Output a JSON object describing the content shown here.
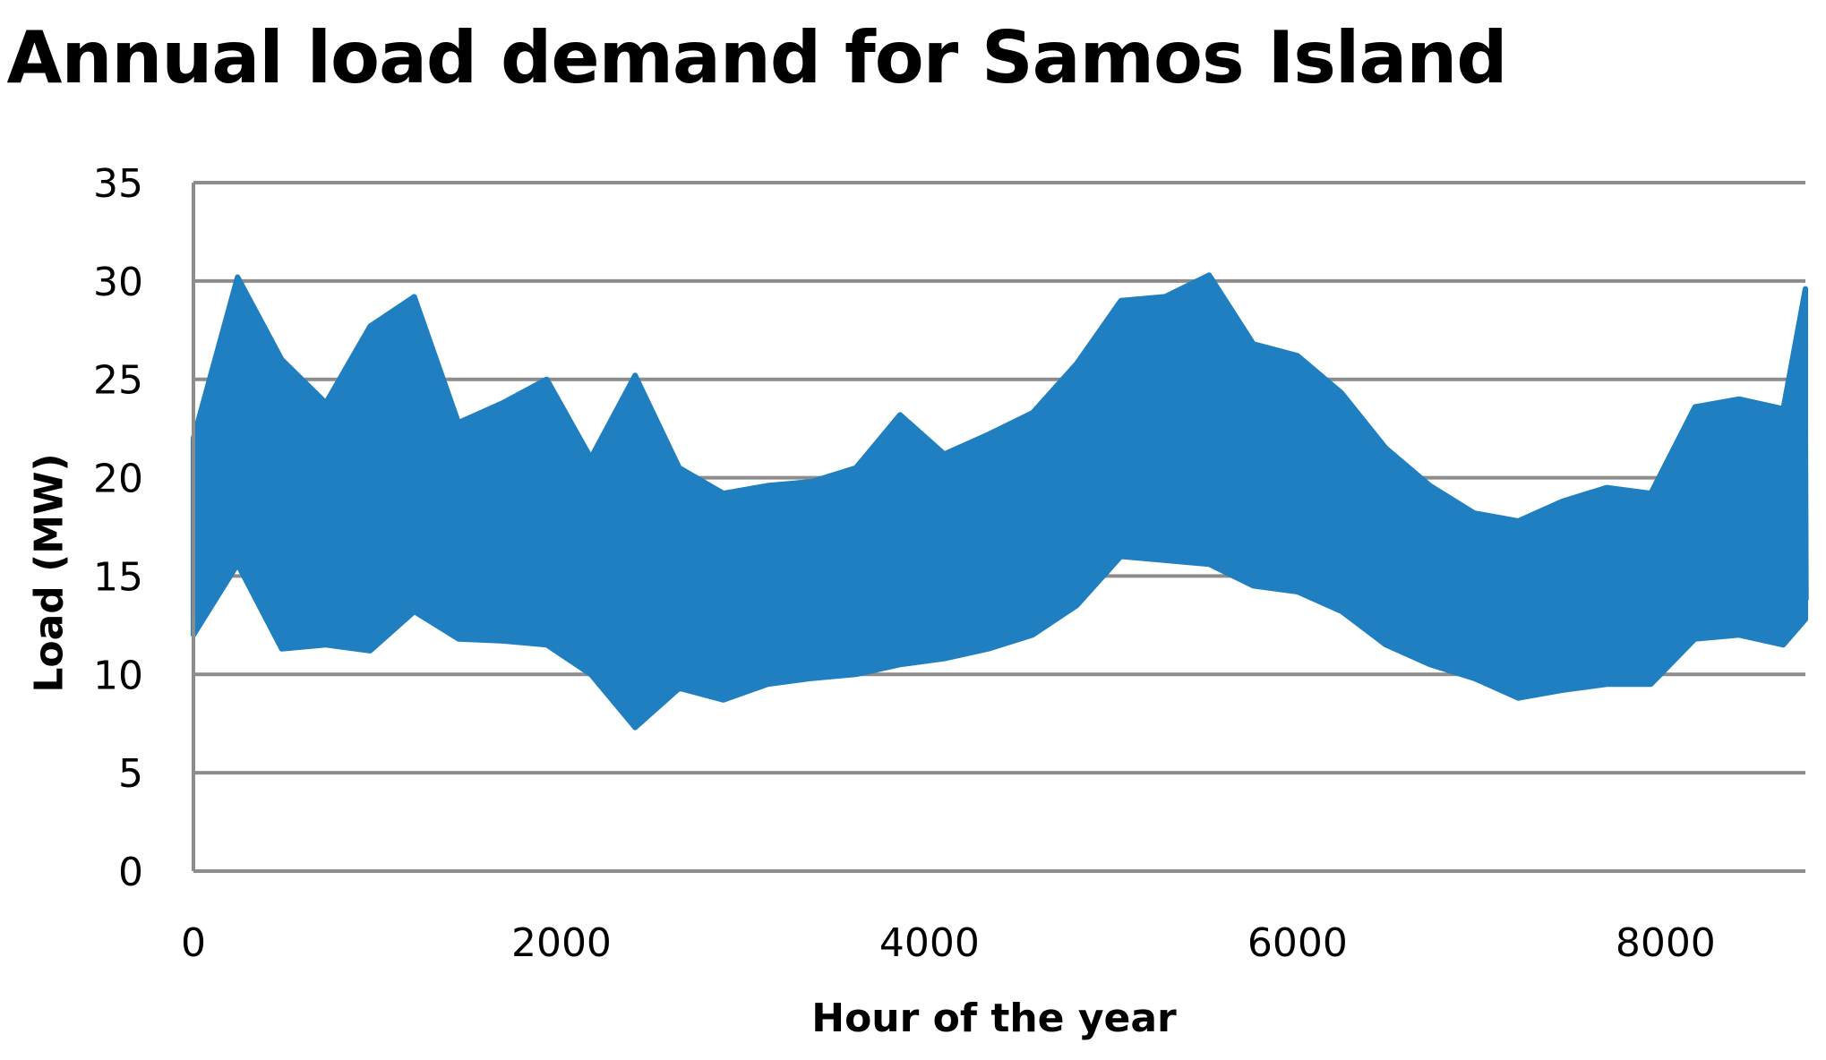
{
  "chart_data": {
    "type": "line",
    "title": "Annual load demand for Samos Island",
    "xlabel": "Hour of the year",
    "ylabel": "Load (MW)",
    "xlim": [
      0,
      8760
    ],
    "ylim": [
      0,
      35
    ],
    "xticks": [
      0,
      2000,
      4000,
      6000,
      8000
    ],
    "yticks": [
      0,
      5,
      10,
      15,
      20,
      25,
      30,
      35
    ],
    "grid": "horizontal",
    "legend": "none",
    "color": "#1f7fc1",
    "series": [
      {
        "x_hours": [
          0,
          240,
          480,
          720,
          960,
          1200,
          1440,
          1680,
          1920,
          2160,
          2400,
          2640,
          2880,
          3120,
          3360,
          3600,
          3840,
          4080,
          4320,
          4560,
          4800,
          5040,
          5280,
          5520,
          5760,
          6000,
          6240,
          6480,
          6720,
          6960,
          7200,
          7440,
          7680,
          7920,
          8160,
          8400,
          8640,
          8760
        ],
        "max": [
          22,
          30.2,
          26,
          23.8,
          27.7,
          29.2,
          22.8,
          23.8,
          25,
          21,
          25.2,
          20.5,
          19.2,
          19.6,
          19.8,
          20.5,
          23.2,
          21.2,
          22.2,
          23.3,
          25.8,
          29,
          29.2,
          30.3,
          26.8,
          26.2,
          24.3,
          21.5,
          19.6,
          18.2,
          17.8,
          18.8,
          19.5,
          19.2,
          23.6,
          24,
          23.5,
          29.6
        ],
        "min": [
          12,
          15.6,
          11.3,
          11.5,
          11.2,
          13.2,
          11.8,
          11.7,
          11.5,
          10,
          7.3,
          9.3,
          8.7,
          9.5,
          9.8,
          10,
          10.5,
          10.8,
          11.3,
          12,
          13.5,
          16,
          15.8,
          15.6,
          14.5,
          14.2,
          13.2,
          11.5,
          10.5,
          9.8,
          8.8,
          9.2,
          9.5,
          9.5,
          11.8,
          12,
          11.5,
          12.8
        ]
      }
    ]
  }
}
